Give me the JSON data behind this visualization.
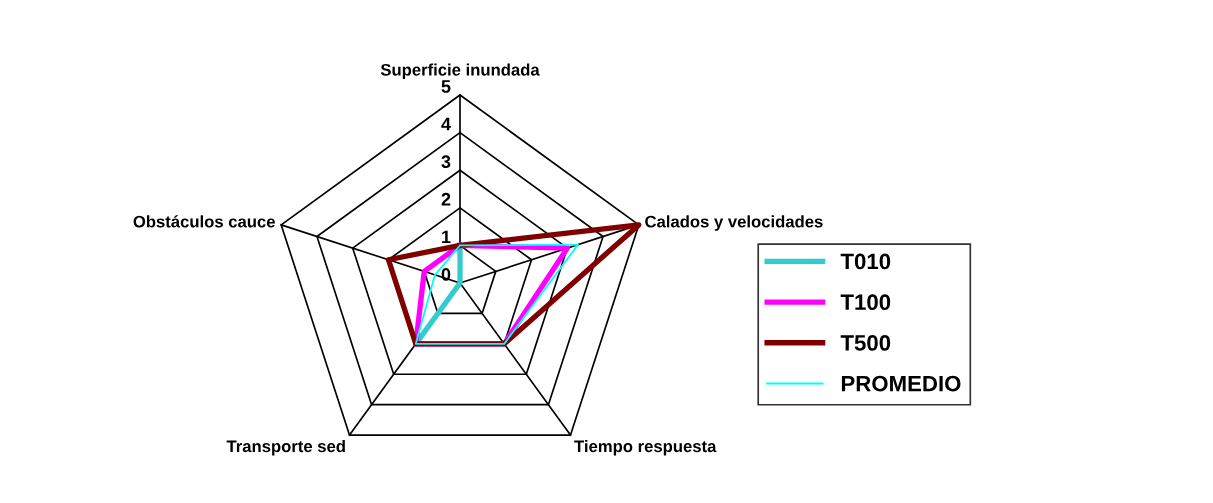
{
  "chart_data": {
    "type": "radar",
    "categories": [
      "Superficie inundada",
      "Calados y velocidades",
      "Tiempo respuesta",
      "Transporte sed",
      "Obstáculos cauce"
    ],
    "ylim": [
      0,
      5
    ],
    "yticks": [
      0,
      1,
      2,
      3,
      4,
      5
    ],
    "legend": "right",
    "grid": true,
    "series": [
      {
        "name": "T010",
        "color": "#33cccc",
        "values": [
          1,
          0,
          0,
          2,
          0
        ]
      },
      {
        "name": "T100",
        "color": "#ff00ff",
        "values": [
          1,
          3,
          2,
          2,
          1
        ]
      },
      {
        "name": "T500",
        "color": "#800000",
        "values": [
          1,
          5,
          2,
          2,
          2
        ]
      },
      {
        "name": "PROMEDIO",
        "color": "#00ffff",
        "values": [
          1,
          3.3,
          2,
          2,
          0.7
        ]
      }
    ]
  }
}
